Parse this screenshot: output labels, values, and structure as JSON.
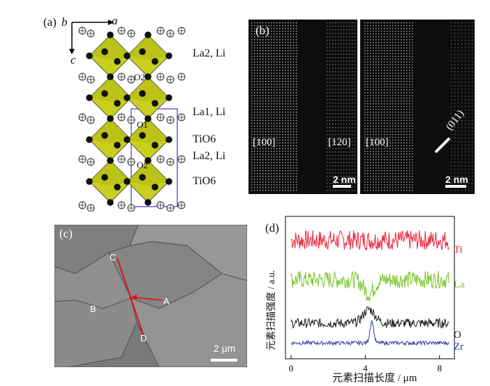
{
  "panel_a": {
    "label": "(a)",
    "axis_b": "b",
    "axis_a": "a",
    "axis_c": "c",
    "site_o2_top": "O2",
    "site_o1": "O1",
    "site_o2_bottom": "O2",
    "layer_labels": [
      "La2, Li",
      "La1, Li",
      "TiO6",
      "La2, Li",
      "TiO6"
    ],
    "colors": {
      "octahedron": "#c8cf1c",
      "cell_edge": "#3a3ad0"
    }
  },
  "panel_b": {
    "label": "(b)",
    "left_zone_labels": [
      "[100]",
      "[120]"
    ],
    "left_scale": "2 nm",
    "right_zone_label": "[100]",
    "right_plane_label": "(011)",
    "right_scale": "2 nm"
  },
  "panel_c": {
    "label": "(c)",
    "point_c": "C",
    "point_a": "A",
    "point_b": "B",
    "point_d": "D",
    "scale": "2 μm",
    "colors": {
      "scan_line": "#e01010"
    }
  },
  "panel_d": {
    "label": "(d)",
    "y_label": "元素扫描强度 / a.u.",
    "x_label": "元素扫描长度 / μm",
    "series_labels": {
      "ti": "Ti",
      "la": "La",
      "o": "O",
      "zr": "Zr"
    },
    "colors": {
      "ti": "#e8243a",
      "la": "#7ac52c",
      "o": "#1a1a1a",
      "zr": "#2e3fa8"
    }
  },
  "chart_data": {
    "type": "line",
    "x_range": [
      0,
      8.5
    ],
    "x_ticks": [
      0,
      4,
      8
    ],
    "series": [
      {
        "name": "Ti",
        "baseline": 3.0,
        "noise": 0.25,
        "feature": "flat"
      },
      {
        "name": "La",
        "baseline": 2.0,
        "noise": 0.22,
        "feature": "dip near 4.2 μm"
      },
      {
        "name": "O",
        "baseline": 0.9,
        "noise": 0.12,
        "feature": "rise near 4.2 μm"
      },
      {
        "name": "Zr",
        "baseline": 0.4,
        "noise": 0.05,
        "feature": "peak near 4.3 μm"
      }
    ]
  }
}
